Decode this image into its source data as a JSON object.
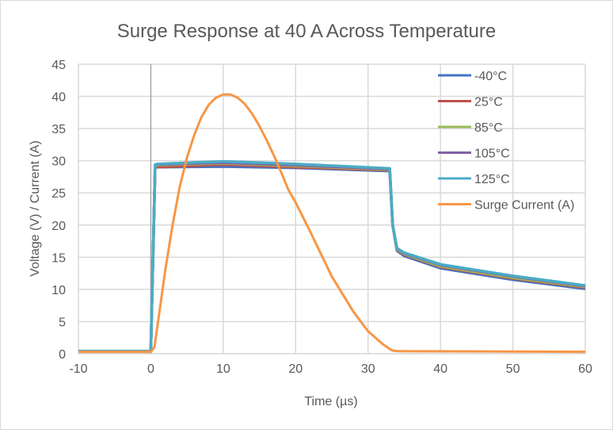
{
  "chart_data": {
    "type": "line",
    "title": "Surge Response at 40 A Across Temperature",
    "xlabel": "Time (µs)",
    "ylabel": "Voltage (V) / Current (A)",
    "xlim": [
      -10,
      60
    ],
    "ylim": [
      0,
      45
    ],
    "xticks": [
      -10,
      0,
      10,
      20,
      30,
      40,
      50,
      60
    ],
    "yticks": [
      0,
      5,
      10,
      15,
      20,
      25,
      30,
      35,
      40,
      45
    ],
    "grid": true,
    "legend_position": "top-right",
    "series": [
      {
        "name": "-40°C",
        "color": "#4472c4",
        "x": [
          -10,
          0,
          0.6,
          1,
          10,
          20,
          33,
          33.4,
          34,
          35,
          40,
          50,
          60
        ],
        "y": [
          0.4,
          0.4,
          29.0,
          29.0,
          29.1,
          28.9,
          28.4,
          20,
          16.0,
          15.2,
          13.3,
          11.5,
          10.1
        ]
      },
      {
        "name": "25°C",
        "color": "#c0504d",
        "x": [
          -10,
          0,
          0.6,
          1,
          10,
          20,
          33,
          33.4,
          34,
          35,
          40,
          50,
          60
        ],
        "y": [
          0.4,
          0.4,
          29.0,
          29.0,
          29.4,
          29.0,
          28.5,
          20,
          16.1,
          15.4,
          13.5,
          11.7,
          10.3
        ]
      },
      {
        "name": "85°C",
        "color": "#9bbb59",
        "x": [
          -10,
          0,
          0.6,
          1,
          10,
          20,
          33,
          33.4,
          34,
          35,
          40,
          50,
          60
        ],
        "y": [
          0.4,
          0.4,
          29.2,
          29.3,
          29.6,
          29.2,
          28.6,
          20,
          16.2,
          15.5,
          13.6,
          11.8,
          10.4
        ]
      },
      {
        "name": "105°C",
        "color": "#8064a2",
        "x": [
          -10,
          0,
          0.6,
          1,
          10,
          20,
          33,
          33.4,
          34,
          35,
          40,
          50,
          60
        ],
        "y": [
          0.4,
          0.4,
          29.3,
          29.4,
          29.7,
          29.3,
          28.7,
          20,
          16.3,
          15.6,
          13.8,
          12.0,
          10.5
        ]
      },
      {
        "name": "125°C",
        "color": "#4bacc6",
        "x": [
          -10,
          0,
          0.6,
          1,
          10,
          20,
          33,
          33.4,
          34,
          35,
          40,
          50,
          60
        ],
        "y": [
          0.4,
          0.4,
          29.4,
          29.5,
          29.9,
          29.5,
          28.8,
          20,
          16.4,
          15.7,
          13.9,
          12.1,
          10.6
        ]
      },
      {
        "name": "Surge Current (A)",
        "color": "#f79646",
        "x": [
          -10,
          0,
          0.5,
          1,
          2,
          3,
          4,
          5,
          6,
          7,
          8,
          9,
          10,
          11,
          12,
          13,
          14,
          15,
          16,
          17,
          18,
          19,
          20,
          22,
          25,
          28,
          30,
          32,
          33.3,
          34,
          60
        ],
        "y": [
          0.3,
          0.3,
          1,
          5,
          13,
          20,
          26,
          30.5,
          34,
          36.8,
          38.7,
          39.8,
          40.3,
          40.3,
          39.8,
          38.8,
          37.3,
          35.4,
          33.2,
          30.8,
          28.2,
          25.5,
          23.5,
          19,
          12,
          6.5,
          3.5,
          1.5,
          0.5,
          0.4,
          0.3
        ]
      }
    ]
  }
}
